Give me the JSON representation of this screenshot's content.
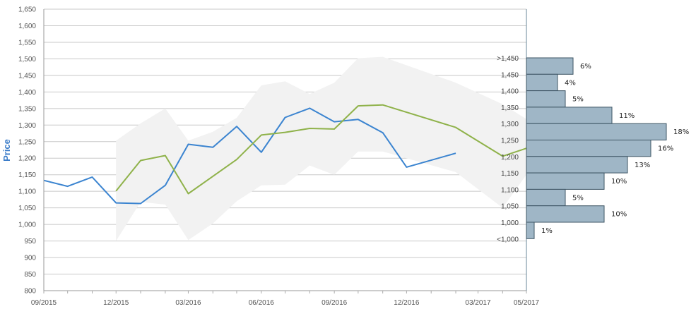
{
  "chart_data": {
    "type": "line",
    "ylabel": "Price",
    "ylim": [
      800,
      1650
    ],
    "y_ticks": [
      800,
      850,
      900,
      950,
      1000,
      1050,
      1100,
      1150,
      1200,
      1250,
      1300,
      1350,
      1400,
      1450,
      1500,
      1550,
      1600,
      1650
    ],
    "y_tick_labels": [
      "800",
      "850",
      "900",
      "950",
      "1,000",
      "1,050",
      "1,100",
      "1,150",
      "1,200",
      "1,250",
      "1,300",
      "1,350",
      "1,400",
      "1,450",
      "1,500",
      "1,550",
      "1,600",
      "1,650"
    ],
    "x_ticks": [
      "2015-09-01",
      "2015-12-01",
      "2016-03-01",
      "2016-06-01",
      "2016-09-01",
      "2016-12-01",
      "2017-03-01",
      "2017-05-01"
    ],
    "x_tick_labels": [
      "09/2015",
      "12/2015",
      "03/2016",
      "06/2016",
      "09/2016",
      "12/2016",
      "03/2017",
      "05/2017"
    ],
    "grid": true,
    "series": [
      {
        "color": "#3b84d0",
        "points": [
          [
            "2015-09-01",
            1133
          ],
          [
            "2015-10-01",
            1115
          ],
          [
            "2015-11-01",
            1143
          ],
          [
            "2015-12-01",
            1065
          ],
          [
            "2016-01-01",
            1063
          ],
          [
            "2016-02-01",
            1118
          ],
          [
            "2016-03-01",
            1242
          ],
          [
            "2016-04-01",
            1233
          ],
          [
            "2016-05-01",
            1296
          ],
          [
            "2016-06-01",
            1218
          ],
          [
            "2016-07-01",
            1323
          ],
          [
            "2016-08-01",
            1351
          ],
          [
            "2016-09-01",
            1310
          ],
          [
            "2016-10-01",
            1317
          ],
          [
            "2016-11-01",
            1277
          ],
          [
            "2016-12-01",
            1173
          ],
          [
            "2017-02-01",
            1215
          ]
        ]
      },
      {
        "color": "#8fb24a",
        "points": [
          [
            "2015-12-01",
            1101
          ],
          [
            "2016-01-01",
            1193
          ],
          [
            "2016-02-01",
            1208
          ],
          [
            "2016-03-01",
            1093
          ],
          [
            "2016-05-01",
            1196
          ],
          [
            "2016-06-01",
            1270
          ],
          [
            "2016-07-01",
            1278
          ],
          [
            "2016-08-01",
            1290
          ],
          [
            "2016-09-01",
            1288
          ],
          [
            "2016-10-01",
            1358
          ],
          [
            "2016-11-01",
            1361
          ],
          [
            "2017-02-01",
            1293
          ],
          [
            "2017-04-01",
            1206
          ],
          [
            "2017-05-01",
            1230
          ]
        ]
      }
    ],
    "range_band": {
      "color": "#f2f2f2",
      "upper": [
        [
          "2015-12-01",
          1253
        ],
        [
          "2016-01-01",
          1305
        ],
        [
          "2016-02-01",
          1350
        ],
        [
          "2016-03-01",
          1253
        ],
        [
          "2016-04-01",
          1280
        ],
        [
          "2016-05-01",
          1322
        ],
        [
          "2016-06-01",
          1420
        ],
        [
          "2016-07-01",
          1432
        ],
        [
          "2016-08-01",
          1394
        ],
        [
          "2016-09-01",
          1428
        ],
        [
          "2016-10-01",
          1502
        ],
        [
          "2016-11-01",
          1506
        ],
        [
          "2017-02-01",
          1428
        ],
        [
          "2017-04-01",
          1363
        ],
        [
          "2017-05-01",
          1318
        ]
      ],
      "lower": [
        [
          "2017-05-01",
          1150
        ],
        [
          "2017-04-01",
          1050
        ],
        [
          "2017-02-01",
          1158
        ],
        [
          "2016-11-01",
          1220
        ],
        [
          "2016-10-01",
          1220
        ],
        [
          "2016-09-01",
          1150
        ],
        [
          "2016-08-01",
          1178
        ],
        [
          "2016-07-01",
          1120
        ],
        [
          "2016-06-01",
          1118
        ],
        [
          "2016-05-01",
          1070
        ],
        [
          "2016-04-01",
          1003
        ],
        [
          "2016-03-01",
          953
        ],
        [
          "2016-02-01",
          1060
        ],
        [
          "2016-01-01",
          1068
        ],
        [
          "2015-12-01",
          950
        ]
      ]
    },
    "distribution": {
      "color": "#9fb6c6",
      "bins": [
        {
          "label": ">1,450",
          "pct": 6,
          "pct_label": "6%"
        },
        {
          "label": "1,450",
          "pct": 4,
          "pct_label": "4%"
        },
        {
          "label": "1,400",
          "pct": 5,
          "pct_label": "5%"
        },
        {
          "label": "1,350",
          "pct": 11,
          "pct_label": "11%"
        },
        {
          "label": "1,300",
          "pct": 18,
          "pct_label": "18%"
        },
        {
          "label": "1,250",
          "pct": 16,
          "pct_label": "16%"
        },
        {
          "label": "1,200",
          "pct": 13,
          "pct_label": "13%"
        },
        {
          "label": "1,150",
          "pct": 10,
          "pct_label": "10%"
        },
        {
          "label": "1,100",
          "pct": 5,
          "pct_label": "5%"
        },
        {
          "label": "1,050",
          "pct": 10,
          "pct_label": "10%"
        },
        {
          "label": "1,000",
          "pct": 1,
          "pct_label": "1%"
        },
        {
          "label": "<1,000",
          "pct": null,
          "pct_label": ""
        }
      ]
    }
  }
}
